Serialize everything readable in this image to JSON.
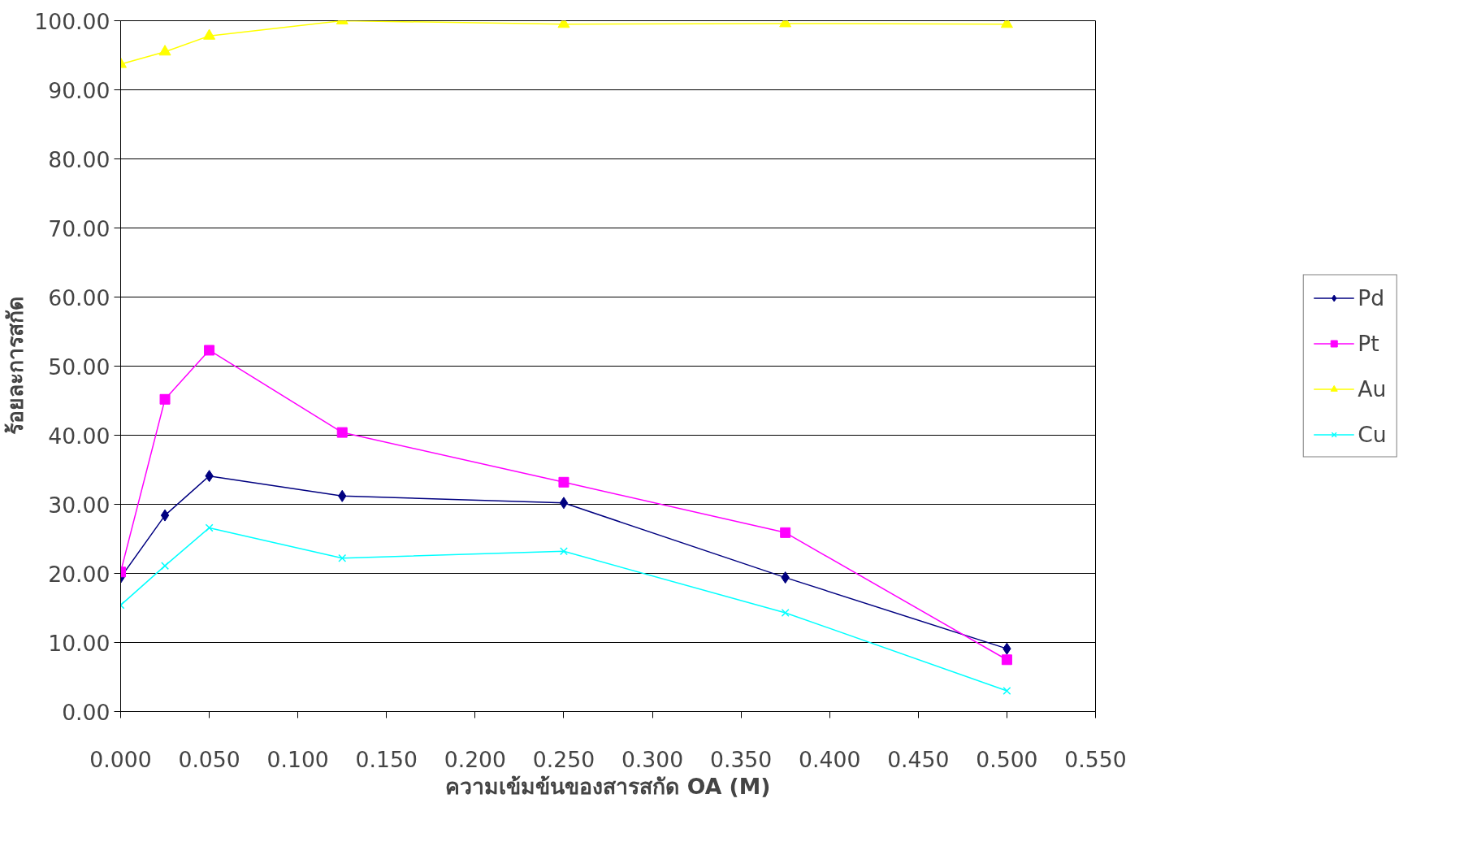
{
  "chart_data": {
    "type": "line",
    "xlabel": "ความเข้มข้นของสารสกัด OA (M)",
    "ylabel": "ร้อยละการสกัด",
    "x": [
      0,
      0.025,
      0.05,
      0.125,
      0.25,
      0.375,
      0.5
    ],
    "series": [
      {
        "name": "Pd",
        "color": "#000080",
        "marker": "diamond",
        "values": [
          19.4,
          28.4,
          34.1,
          31.2,
          30.2,
          19.4,
          9.1
        ]
      },
      {
        "name": "Pt",
        "color": "#ff00ff",
        "marker": "square",
        "values": [
          20.2,
          45.2,
          52.3,
          40.4,
          33.2,
          25.9,
          7.5
        ]
      },
      {
        "name": "Au",
        "color": "#ffff00",
        "marker": "triangle",
        "values": [
          93.7,
          95.5,
          97.8,
          100.0,
          99.5,
          99.6,
          99.5
        ]
      },
      {
        "name": "Cu",
        "color": "#00ffff",
        "marker": "cross",
        "values": [
          15.4,
          21.1,
          26.6,
          22.2,
          23.2,
          14.3,
          3.0
        ]
      }
    ],
    "xlim": [
      0,
      0.55
    ],
    "xticks": [
      {
        "value": 0,
        "label": "0.000"
      },
      {
        "value": 0.05,
        "label": "0.050"
      },
      {
        "value": 0.1,
        "label": "0.100"
      },
      {
        "value": 0.15,
        "label": "0.150"
      },
      {
        "value": 0.2,
        "label": "0.200"
      },
      {
        "value": 0.25,
        "label": "0.250"
      },
      {
        "value": 0.3,
        "label": "0.300"
      },
      {
        "value": 0.35,
        "label": "0.350"
      },
      {
        "value": 0.4,
        "label": "0.400"
      },
      {
        "value": 0.45,
        "label": "0.450"
      },
      {
        "value": 0.5,
        "label": "0.500"
      },
      {
        "value": 0.55,
        "label": "0.550"
      }
    ],
    "ylim": [
      0,
      100
    ],
    "yticks": [
      {
        "value": 0,
        "label": "0.00"
      },
      {
        "value": 10,
        "label": "10.00"
      },
      {
        "value": 20,
        "label": "20.00"
      },
      {
        "value": 30,
        "label": "30.00"
      },
      {
        "value": 40,
        "label": "40.00"
      },
      {
        "value": 50,
        "label": "50.00"
      },
      {
        "value": 60,
        "label": "60.00"
      },
      {
        "value": 70,
        "label": "70.00"
      },
      {
        "value": 80,
        "label": "80.00"
      },
      {
        "value": 90,
        "label": "90.00"
      },
      {
        "value": 100,
        "label": "100.00"
      }
    ],
    "grid": "y",
    "legend": "right",
    "line_style": "solid"
  }
}
